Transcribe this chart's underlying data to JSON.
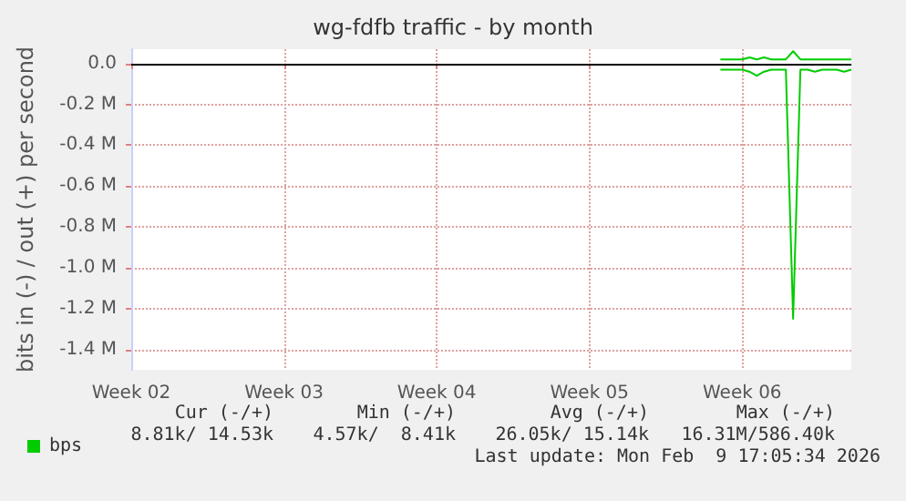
{
  "chart_data": {
    "type": "line",
    "title": "wg-fdfb traffic - by month",
    "ylabel": "bits in (-) / out (+) per second",
    "categories": [
      "Week 02",
      null,
      null,
      null,
      null,
      null,
      null,
      null,
      null,
      null,
      null,
      null,
      null,
      null,
      null,
      null,
      null,
      null,
      null,
      null,
      null,
      "Week 03",
      null,
      null,
      null,
      null,
      null,
      null,
      null,
      null,
      null,
      null,
      null,
      null,
      null,
      null,
      null,
      null,
      null,
      null,
      null,
      null,
      "Week 04",
      null,
      null,
      null,
      null,
      null,
      null,
      null,
      null,
      null,
      null,
      null,
      null,
      null,
      null,
      null,
      null,
      null,
      null,
      null,
      null,
      "Week 05",
      null,
      null,
      null,
      null,
      null,
      null,
      null,
      null,
      null,
      null,
      null,
      null,
      null,
      null,
      null,
      null,
      null,
      null,
      null,
      null,
      "Week 06",
      null,
      null,
      null,
      null,
      null,
      null,
      null,
      null,
      null,
      null,
      null,
      null,
      null,
      null,
      null
    ],
    "ylim": [
      -1500000,
      70000
    ],
    "yticks": [
      {
        "value": 0,
        "label": "0.0"
      },
      {
        "value": -200000,
        "label": "-0.2 M"
      },
      {
        "value": -400000,
        "label": "-0.4 M"
      },
      {
        "value": -600000,
        "label": "-0.6 M"
      },
      {
        "value": -800000,
        "label": "-0.8 M"
      },
      {
        "value": -1000000,
        "label": "-1.0 M"
      },
      {
        "value": -1200000,
        "label": "-1.2 M"
      },
      {
        "value": -1400000,
        "label": "-1.4 M"
      }
    ],
    "grid": true,
    "legend": "bottom left",
    "marker": "none",
    "line_style": "solid",
    "ref_lines": [
      {
        "axis": "y",
        "value": 0,
        "color": "#000000"
      }
    ],
    "series": [
      {
        "name": "bps",
        "color": "#00cc00",
        "values": [
          null,
          null,
          null,
          null,
          null,
          null,
          null,
          null,
          null,
          null,
          null,
          null,
          null,
          null,
          null,
          null,
          null,
          null,
          null,
          null,
          null,
          null,
          null,
          null,
          null,
          null,
          null,
          null,
          null,
          null,
          null,
          null,
          null,
          null,
          null,
          null,
          null,
          null,
          null,
          null,
          null,
          null,
          null,
          null,
          null,
          null,
          null,
          null,
          null,
          null,
          null,
          null,
          null,
          null,
          null,
          null,
          null,
          null,
          null,
          null,
          null,
          null,
          null,
          null,
          null,
          null,
          null,
          null,
          null,
          null,
          null,
          null,
          null,
          null,
          null,
          null,
          null,
          null,
          null,
          null,
          null,
          20000,
          20000,
          20000,
          20000,
          30000,
          20000,
          30000,
          20000,
          20000,
          20000,
          60000,
          20000,
          20000,
          20000,
          20000,
          20000,
          20000,
          20000,
          20000
        ]
      },
      {
        "color": "#00cc00",
        "values": [
          null,
          null,
          null,
          null,
          null,
          null,
          null,
          null,
          null,
          null,
          null,
          null,
          null,
          null,
          null,
          null,
          null,
          null,
          null,
          null,
          null,
          null,
          null,
          null,
          null,
          null,
          null,
          null,
          null,
          null,
          null,
          null,
          null,
          null,
          null,
          null,
          null,
          null,
          null,
          null,
          null,
          null,
          null,
          null,
          null,
          null,
          null,
          null,
          null,
          null,
          null,
          null,
          null,
          null,
          null,
          null,
          null,
          null,
          null,
          null,
          null,
          null,
          null,
          null,
          null,
          null,
          null,
          null,
          null,
          null,
          null,
          null,
          null,
          null,
          null,
          null,
          null,
          null,
          null,
          null,
          null,
          -30000,
          -30000,
          -30000,
          -30000,
          -40000,
          -60000,
          -40000,
          -30000,
          -30000,
          -30000,
          -1250000,
          -30000,
          -30000,
          -40000,
          -30000,
          -30000,
          -30000,
          -40000,
          -30000
        ]
      }
    ],
    "annotations": [
      "Cur (-/+)",
      "Min (-/+)",
      "Avg (-/+)",
      "Max (-/+)",
      "8.81k/ 14.53k",
      "4.57k/  8.41k",
      "26.05k/ 15.14k",
      "16.31M/586.40k",
      "Last update: Mon Feb  9 17:05:34 2026"
    ]
  }
}
